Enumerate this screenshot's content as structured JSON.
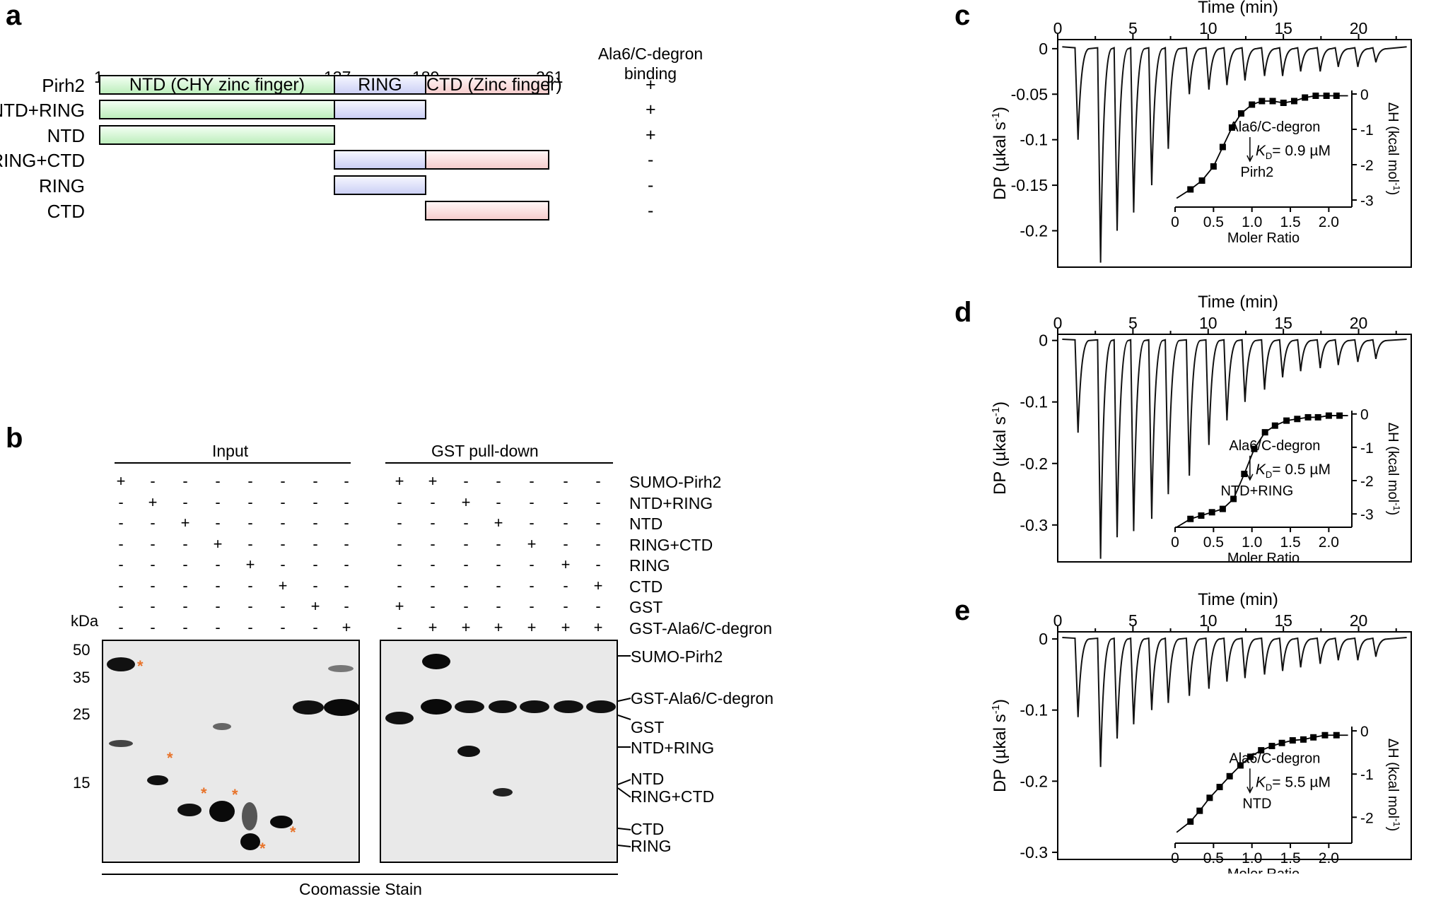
{
  "panels": {
    "a": "a",
    "b": "b",
    "c": "c",
    "d": "d",
    "e": "e"
  },
  "panel_a": {
    "positions": [
      "1",
      "137",
      "189",
      "261"
    ],
    "binding_header_line1": "Ala6/C-degron",
    "binding_header_line2": "binding",
    "domains": {
      "ntd": "NTD (CHY zinc finger)",
      "ring": "RING",
      "ctd": "CTD (Zinc finger)"
    },
    "constructs": [
      {
        "name": "Pirh2",
        "binding": "+"
      },
      {
        "name": "NTD+RING",
        "binding": "+"
      },
      {
        "name": "NTD",
        "binding": "+"
      },
      {
        "name": "RING+CTD",
        "binding": "-"
      },
      {
        "name": "RING",
        "binding": "-"
      },
      {
        "name": "CTD",
        "binding": "-"
      }
    ]
  },
  "panel_b": {
    "input_title": "Input",
    "pulldown_title": "GST pull-down",
    "kda_label": "kDa",
    "row_labels": [
      "SUMO-Pirh2",
      "NTD+RING",
      "NTD",
      "RING+CTD",
      "RING",
      "CTD",
      "GST",
      "GST-Ala6/C-degron"
    ],
    "input_signs": [
      [
        "+",
        "-",
        "-",
        "-",
        "-",
        "-",
        "-",
        "-"
      ],
      [
        "-",
        "+",
        "-",
        "-",
        "-",
        "-",
        "-",
        "-"
      ],
      [
        "-",
        "-",
        "+",
        "-",
        "-",
        "-",
        "-",
        "-"
      ],
      [
        "-",
        "-",
        "-",
        "+",
        "-",
        "-",
        "-",
        "-"
      ],
      [
        "-",
        "-",
        "-",
        "-",
        "+",
        "-",
        "-",
        "-"
      ],
      [
        "-",
        "-",
        "-",
        "-",
        "-",
        "+",
        "-",
        "-"
      ],
      [
        "-",
        "-",
        "-",
        "-",
        "-",
        "-",
        "+",
        "-"
      ],
      [
        "-",
        "-",
        "-",
        "-",
        "-",
        "-",
        "-",
        "+"
      ]
    ],
    "pulldown_signs": [
      [
        "+",
        "+",
        "-",
        "-",
        "-",
        "-",
        "-"
      ],
      [
        "-",
        "-",
        "+",
        "-",
        "-",
        "-",
        "-"
      ],
      [
        "-",
        "-",
        "-",
        "+",
        "-",
        "-",
        "-"
      ],
      [
        "-",
        "-",
        "-",
        "-",
        "+",
        "-",
        "-"
      ],
      [
        "-",
        "-",
        "-",
        "-",
        "-",
        "+",
        "-"
      ],
      [
        "-",
        "-",
        "-",
        "-",
        "-",
        "-",
        "+"
      ],
      [
        "+",
        "-",
        "-",
        "-",
        "-",
        "-",
        "-"
      ],
      [
        "-",
        "+",
        "+",
        "+",
        "+",
        "+",
        "+"
      ]
    ],
    "markers": [
      "50",
      "35",
      "25",
      "15"
    ],
    "band_labels": [
      "SUMO-Pirh2",
      "GST-Ala6/C-degron",
      "GST",
      "NTD+RING",
      "NTD",
      "RING+CTD",
      "CTD",
      "RING"
    ],
    "asterisk": "*",
    "stain_label": "Coomassie Stain",
    "colors": {
      "asterisk": "#e8732a",
      "band": "#1a1a1a",
      "gel_bg": "#e9e9e9"
    }
  },
  "itc_common": {
    "time_label": "Time (min)",
    "time_ticks": [
      "0",
      "5",
      "10",
      "15",
      "20"
    ],
    "dp_label": "DP (µkal s",
    "dp_sup": "-1",
    "dh_label": "ΔH (kcal mol",
    "dh_sup": "-1",
    "ratio_label": "Moler Ratio",
    "ratio_ticks": [
      "0",
      "0.5",
      "1.0",
      "1.5",
      "2.0"
    ],
    "ligand": "Ala6/C-degron",
    "kd_prefix": "K",
    "kd_sub": "D"
  },
  "chart_data": [
    {
      "type": "line",
      "panel": "c",
      "xlabel": "Time (min)",
      "ylabel": "DP (µkal s-1)",
      "xlim": [
        0,
        23.5
      ],
      "ylim": [
        -0.24,
        0.01
      ],
      "y_ticks": [
        "0",
        "-0.05",
        "-0.1",
        "-0.15",
        "-0.2"
      ],
      "injection_times": [
        1.2,
        2.7,
        3.8,
        4.9,
        6.1,
        7.2,
        8.6,
        9.9,
        11.1,
        12.3,
        13.6,
        14.8,
        16.0,
        17.3,
        18.5,
        19.8,
        21.0
      ],
      "injection_peaks": [
        -0.1,
        -0.235,
        -0.2,
        -0.18,
        -0.15,
        -0.11,
        -0.05,
        -0.045,
        -0.04,
        -0.035,
        -0.03,
        -0.03,
        -0.025,
        -0.025,
        -0.02,
        -0.02,
        -0.015
      ],
      "inset": {
        "xlabel": "Moler Ratio",
        "ylabel": "ΔH (kcal mol-1)",
        "xlim": [
          0,
          2.3
        ],
        "ylim": [
          -3.2,
          0.1
        ],
        "y_ticks": [
          "0",
          "-1",
          "-2",
          "-3"
        ],
        "x": [
          0.2,
          0.35,
          0.5,
          0.62,
          0.74,
          0.86,
          1.0,
          1.13,
          1.27,
          1.41,
          1.55,
          1.69,
          1.83,
          1.97,
          2.1
        ],
        "y": [
          -2.7,
          -2.45,
          -2.05,
          -1.5,
          -0.95,
          -0.55,
          -0.3,
          -0.2,
          -0.2,
          -0.25,
          -0.2,
          -0.1,
          -0.05,
          -0.05,
          -0.05
        ],
        "ligand": "Ala6/C-degron",
        "kd": "= 0.9 µM",
        "protein": "Pirh2"
      }
    },
    {
      "type": "line",
      "panel": "d",
      "xlabel": "Time (min)",
      "ylabel": "DP (µkal s-1)",
      "xlim": [
        0,
        23.5
      ],
      "ylim": [
        -0.36,
        0.01
      ],
      "y_ticks": [
        "0",
        "-0.1",
        "-0.2",
        "-0.3"
      ],
      "injection_times": [
        1.2,
        2.7,
        3.8,
        4.9,
        6.1,
        7.2,
        8.6,
        9.9,
        11.1,
        12.3,
        13.6,
        14.8,
        16.0,
        17.3,
        18.5,
        19.8,
        21.0
      ],
      "injection_peaks": [
        -0.15,
        -0.355,
        -0.32,
        -0.31,
        -0.29,
        -0.25,
        -0.22,
        -0.17,
        -0.13,
        -0.1,
        -0.08,
        -0.06,
        -0.05,
        -0.045,
        -0.04,
        -0.035,
        -0.03
      ],
      "inset": {
        "xlabel": "Moler Ratio",
        "ylabel": "ΔH (kcal mol-1)",
        "xlim": [
          0,
          2.3
        ],
        "ylim": [
          -3.4,
          0.1
        ],
        "y_ticks": [
          "0",
          "-1",
          "-2",
          "-3"
        ],
        "x": [
          0.2,
          0.34,
          0.48,
          0.62,
          0.76,
          0.9,
          1.03,
          1.17,
          1.3,
          1.45,
          1.59,
          1.73,
          1.86,
          2.0,
          2.14
        ],
        "y": [
          -3.15,
          -3.05,
          -2.95,
          -2.85,
          -2.55,
          -1.8,
          -1.05,
          -0.55,
          -0.35,
          -0.2,
          -0.15,
          -0.1,
          -0.1,
          -0.05,
          -0.05
        ],
        "ligand": "Ala6/C-degron",
        "kd": "= 0.5 µM",
        "protein": "NTD+RING"
      }
    },
    {
      "type": "line",
      "panel": "e",
      "xlabel": "Time (min)",
      "ylabel": "DP (µkal s-1)",
      "xlim": [
        0,
        23.5
      ],
      "ylim": [
        -0.31,
        0.01
      ],
      "y_ticks": [
        "0",
        "-0.1",
        "-0.2",
        "-0.3"
      ],
      "injection_times": [
        1.2,
        2.7,
        3.8,
        4.9,
        6.1,
        7.2,
        8.6,
        9.9,
        11.1,
        12.3,
        13.6,
        14.8,
        16.0,
        17.3,
        18.5,
        19.8,
        21.0
      ],
      "injection_peaks": [
        -0.11,
        -0.18,
        -0.14,
        -0.12,
        -0.1,
        -0.09,
        -0.08,
        -0.07,
        -0.06,
        -0.055,
        -0.05,
        -0.045,
        -0.04,
        -0.035,
        -0.03,
        -0.03,
        -0.025
      ],
      "inset": {
        "xlabel": "Moler Ratio",
        "ylabel": "ΔH (kcal mol-1)",
        "xlim": [
          0,
          2.3
        ],
        "ylim": [
          -2.6,
          0.1
        ],
        "y_ticks": [
          "0",
          "-1",
          "-2"
        ],
        "x": [
          0.2,
          0.32,
          0.45,
          0.58,
          0.71,
          0.85,
          0.98,
          1.12,
          1.26,
          1.39,
          1.53,
          1.67,
          1.8,
          1.95,
          2.1
        ],
        "y": [
          -2.1,
          -1.85,
          -1.55,
          -1.3,
          -1.05,
          -0.8,
          -0.6,
          -0.45,
          -0.35,
          -0.28,
          -0.22,
          -0.2,
          -0.15,
          -0.1,
          -0.1
        ],
        "ligand": "Ala6/C-degron",
        "kd": "= 5.5 µM",
        "protein": "NTD"
      }
    }
  ]
}
